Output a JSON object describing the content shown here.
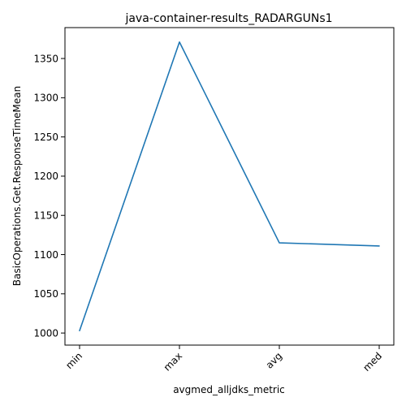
{
  "chart_data": {
    "type": "line",
    "title": "java-container-results_RADARGUNs1",
    "xlabel": "avgmed_alljdks_metric",
    "ylabel": "BasicOperations.Get.ResponseTimeMean",
    "categories": [
      "min",
      "max",
      "avg",
      "med"
    ],
    "series": [
      {
        "values": [
          1003,
          1371,
          1115,
          1111
        ],
        "color": "#1f77b4"
      }
    ],
    "ylim": [
      984.6,
      1389.4
    ],
    "yticks": [
      1000,
      1050,
      1100,
      1150,
      1200,
      1250,
      1300,
      1350
    ],
    "xtick_rotation": 45,
    "grid": false,
    "legend": "none"
  }
}
